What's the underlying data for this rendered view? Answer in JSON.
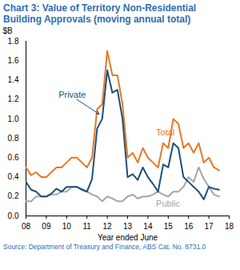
{
  "chart_data": {
    "type": "line",
    "title": "Chart 3: Value of Territory Non-Residential Building Approvals (moving annual total)",
    "y_label": "$B",
    "x_label": "Year ended June",
    "caption": "Source: Department of Treasury and Finance, ABS Cat. No. 8731.0",
    "x": [
      2008,
      2008.25,
      2008.5,
      2008.75,
      2009,
      2009.25,
      2009.5,
      2009.75,
      2010,
      2010.25,
      2010.5,
      2010.75,
      2011,
      2011.25,
      2011.5,
      2011.75,
      2012,
      2012.25,
      2012.5,
      2012.75,
      2013,
      2013.25,
      2013.5,
      2013.75,
      2014,
      2014.25,
      2014.5,
      2014.75,
      2015,
      2015.25,
      2015.5,
      2015.75,
      2016,
      2016.25,
      2016.5,
      2016.75,
      2017,
      2017.25,
      2017.5
    ],
    "series": [
      {
        "name": "Total",
        "color": "#E87722",
        "values": [
          0.5,
          0.42,
          0.45,
          0.4,
          0.4,
          0.45,
          0.5,
          0.5,
          0.55,
          0.6,
          0.6,
          0.55,
          0.5,
          0.6,
          1.1,
          1.15,
          1.7,
          1.45,
          1.45,
          1.15,
          0.6,
          0.65,
          0.55,
          0.7,
          0.6,
          0.55,
          0.5,
          0.75,
          0.7,
          1.0,
          0.95,
          0.7,
          0.75,
          0.65,
          0.75,
          0.55,
          0.6,
          0.5,
          0.47
        ]
      },
      {
        "name": "Private",
        "color": "#1F4E79",
        "values": [
          0.35,
          0.27,
          0.25,
          0.2,
          0.2,
          0.23,
          0.28,
          0.25,
          0.3,
          0.3,
          0.3,
          0.27,
          0.25,
          0.38,
          0.9,
          1.0,
          1.5,
          1.27,
          1.3,
          1.0,
          0.4,
          0.43,
          0.37,
          0.5,
          0.4,
          0.33,
          0.25,
          0.53,
          0.5,
          0.75,
          0.7,
          0.4,
          0.35,
          0.3,
          0.25,
          0.17,
          0.3,
          0.28,
          0.27
        ]
      },
      {
        "name": "Public",
        "color": "#A6A6A6",
        "values": [
          0.15,
          0.15,
          0.2,
          0.2,
          0.2,
          0.22,
          0.22,
          0.25,
          0.25,
          0.3,
          0.3,
          0.28,
          0.25,
          0.22,
          0.2,
          0.15,
          0.2,
          0.18,
          0.15,
          0.15,
          0.2,
          0.22,
          0.18,
          0.2,
          0.2,
          0.22,
          0.25,
          0.22,
          0.2,
          0.25,
          0.25,
          0.3,
          0.4,
          0.35,
          0.5,
          0.38,
          0.3,
          0.22,
          0.2
        ]
      }
    ],
    "xlim": [
      2008,
      2018
    ],
    "xticks": [
      {
        "value": 2008,
        "label": "08"
      },
      {
        "value": 2009,
        "label": "09"
      },
      {
        "value": 2010,
        "label": "10"
      },
      {
        "value": 2011,
        "label": "11"
      },
      {
        "value": 2012,
        "label": "12"
      },
      {
        "value": 2013,
        "label": "13"
      },
      {
        "value": 2014,
        "label": "14"
      },
      {
        "value": 2015,
        "label": "15"
      },
      {
        "value": 2016,
        "label": "16"
      },
      {
        "value": 2017,
        "label": "17"
      },
      {
        "value": 2018,
        "label": "18"
      }
    ],
    "ylim": [
      0,
      1.8
    ],
    "yticks": [
      {
        "value": 0,
        "label": "0.0"
      },
      {
        "value": 0.2,
        "label": "0.2"
      },
      {
        "value": 0.4,
        "label": "0.4"
      },
      {
        "value": 0.6,
        "label": "0.6"
      },
      {
        "value": 0.8,
        "label": "0.8"
      },
      {
        "value": 1,
        "label": "1.0"
      },
      {
        "value": 1.2,
        "label": "1.2"
      },
      {
        "value": 1.4,
        "label": "1.4"
      },
      {
        "value": 1.6,
        "label": "1.6"
      },
      {
        "value": 1.8,
        "label": "1.8"
      }
    ],
    "grid": false
  }
}
